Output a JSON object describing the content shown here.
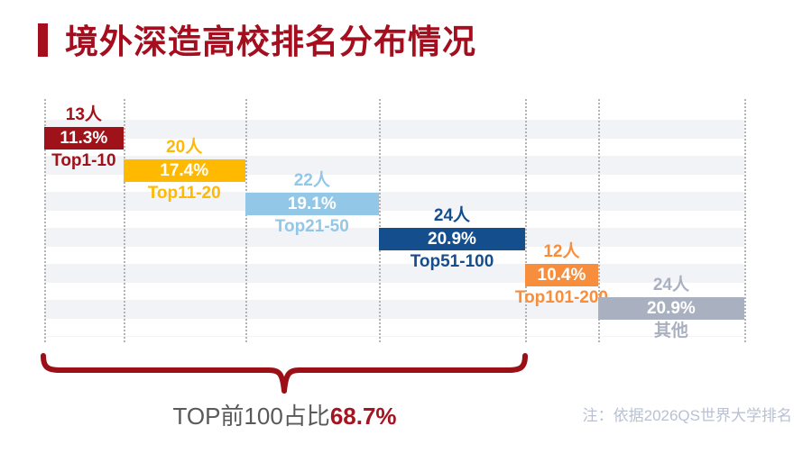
{
  "title": {
    "text": "境外深造高校排名分布情况"
  },
  "chart_data": {
    "type": "bar",
    "subtype": "stepped-cascade-percentage",
    "title": "境外深造高校排名分布情况",
    "categories": [
      "Top1-10",
      "Top11-20",
      "Top21-50",
      "Top51-100",
      "Top101-200",
      "其他"
    ],
    "counts": [
      13,
      20,
      22,
      24,
      12,
      24
    ],
    "percentages": [
      11.3,
      17.4,
      19.1,
      20.9,
      10.4,
      20.9
    ],
    "bars": [
      {
        "count_label": "13人",
        "pct_label": "11.3%",
        "range_label": "Top1-10",
        "pct": 11.3,
        "color": "#A0121A"
      },
      {
        "count_label": "20人",
        "pct_label": "17.4%",
        "range_label": "Top11-20",
        "pct": 17.4,
        "color": "#FFB900"
      },
      {
        "count_label": "22人",
        "pct_label": "19.1%",
        "range_label": "Top21-50",
        "pct": 19.1,
        "color": "#92C7E8"
      },
      {
        "count_label": "24人",
        "pct_label": "20.9%",
        "range_label": "Top51-100",
        "pct": 20.9,
        "color": "#154E8C"
      },
      {
        "count_label": "12人",
        "pct_label": "10.4%",
        "range_label": "Top101-200",
        "pct": 10.4,
        "color": "#F78E3D"
      },
      {
        "count_label": "24人",
        "pct_label": "20.9%",
        "range_label": "其他",
        "pct": 20.9,
        "color": "#A9B1C0"
      }
    ],
    "annotation": {
      "prefix": "TOP前100占比",
      "value": "68.7%",
      "covers_bars": 4
    },
    "note": "注：依据2026QS世界大学排名",
    "legend_position": "none",
    "grid": "vertical-dotted",
    "xlim_percent": [
      0,
      100
    ]
  },
  "colors": {
    "title": "#A40E1E",
    "brace": "#9A1016",
    "annotation_text": "#595959",
    "annotation_value": "#A31621",
    "note_text": "#B9C1D3",
    "stripe": "#F1F3F6",
    "gridline": "#B3B3B3"
  }
}
